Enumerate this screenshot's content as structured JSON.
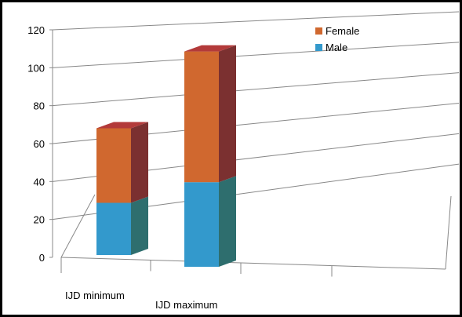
{
  "chart_data": {
    "type": "bar",
    "stacked": true,
    "three_d": true,
    "categories": [
      "IJD minimum",
      "IJD maximum"
    ],
    "series": [
      {
        "name": "Male",
        "values": [
          28,
          44
        ],
        "color": "#3399CC",
        "side_color": "#2E6E6E"
      },
      {
        "name": "Female",
        "values": [
          40,
          68
        ],
        "color": "#D0682F",
        "side_color": "#7B3030"
      }
    ],
    "y_ticks": [
      "0",
      "20",
      "40",
      "60",
      "80",
      "100",
      "120"
    ],
    "ylim": [
      0,
      120
    ],
    "grid": true,
    "legend_placement": "top-right",
    "title": "",
    "xlabel": "",
    "ylabel": ""
  }
}
